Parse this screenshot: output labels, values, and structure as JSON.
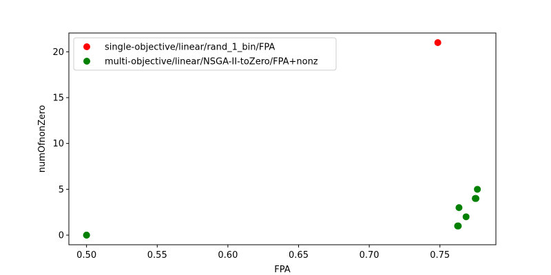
{
  "chart_data": {
    "type": "scatter",
    "xlabel": "FPA",
    "ylabel": "numOfnonZero",
    "xlim": [
      0.4875,
      0.7896
    ],
    "ylim": [
      -1.05,
      22.05
    ],
    "xticks": [
      0.5,
      0.55,
      0.6,
      0.65,
      0.7,
      0.75
    ],
    "xtick_labels": [
      "0.50",
      "0.55",
      "0.60",
      "0.65",
      "0.70",
      "0.75"
    ],
    "yticks": [
      0,
      5,
      10,
      15,
      20
    ],
    "ytick_labels": [
      "0",
      "5",
      "10",
      "15",
      "20"
    ],
    "grid": false,
    "legend_position": "top-left",
    "series": [
      {
        "name": "single-objective/linear/rand_1_bin/FPA",
        "color": "#ff0000",
        "points": [
          [
            0.7485,
            21
          ]
        ]
      },
      {
        "name": "multi-objective/linear/NSGA-II-toZero/FPA+nonz",
        "color": "#008000",
        "points": [
          [
            0.5,
            0
          ],
          [
            0.5,
            0
          ],
          [
            0.7625,
            1
          ],
          [
            0.763,
            1
          ],
          [
            0.7635,
            3
          ],
          [
            0.7685,
            2
          ],
          [
            0.775,
            4
          ],
          [
            0.7755,
            4
          ],
          [
            0.7765,
            5
          ]
        ]
      }
    ]
  }
}
